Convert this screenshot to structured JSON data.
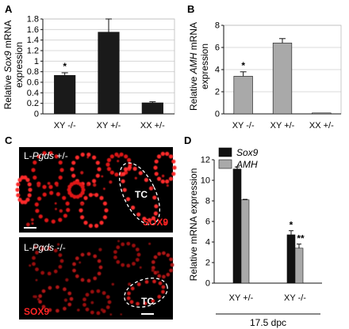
{
  "panels": {
    "A": "A",
    "B": "B",
    "C": "C",
    "D": "D"
  },
  "chart_data": [
    {
      "id": "A",
      "type": "bar",
      "categories": [
        "XY -/-",
        "XY +/-",
        "XX +/-"
      ],
      "values": [
        0.73,
        1.55,
        0.21
      ],
      "errors": [
        0.05,
        0.25,
        0.02
      ],
      "significance": [
        "*",
        "",
        ""
      ],
      "ylabel_parts": [
        "Relative ",
        "Sox9",
        " mRNA"
      ],
      "ylabel_line2": "expression",
      "yticks": [
        "0",
        "0.2",
        "0.4",
        "0.6",
        "0.8",
        "1",
        "1.2",
        "1.4",
        "1.6",
        "1.8"
      ],
      "ylim": [
        0,
        1.8
      ],
      "grid": true,
      "color": "#1a1a1a"
    },
    {
      "id": "B",
      "type": "bar",
      "categories": [
        "XY -/-",
        "XY +/-",
        "XX +/-"
      ],
      "values": [
        3.4,
        6.4,
        0.03
      ],
      "errors": [
        0.4,
        0.4,
        0.0
      ],
      "significance": [
        "*",
        "",
        ""
      ],
      "ylabel_parts": [
        "Relative ",
        "AMH",
        " mRNA"
      ],
      "ylabel_line2": "expression",
      "yticks": [
        "0",
        "2",
        "4",
        "6",
        "8"
      ],
      "ylim": [
        0,
        8
      ],
      "grid": true,
      "color": "#a9a9a9"
    },
    {
      "id": "D",
      "type": "bar",
      "categories": [
        "XY +/-",
        "XY -/-"
      ],
      "series": [
        {
          "name": "Sox9",
          "values": [
            11.1,
            4.7
          ],
          "errors": [
            0.2,
            0.4
          ],
          "significance": [
            "",
            "*"
          ],
          "color": "#111111"
        },
        {
          "name": "AMH",
          "values": [
            8.1,
            3.4
          ],
          "errors": [
            0.05,
            0.4
          ],
          "significance": [
            "",
            "**"
          ],
          "color": "#a9a9a9"
        }
      ],
      "ylabel": "Relative mRNA expression",
      "yticks": [
        "0",
        "2",
        "4",
        "6",
        "8",
        "10",
        "12"
      ],
      "ylim": [
        0,
        12
      ],
      "xlabel": "17.5 dpc",
      "grid": false,
      "legend": "top-left"
    }
  ],
  "micrographs": {
    "top": {
      "label_prefix": "L-",
      "label_gene": "Pgds",
      "label_suffix": " +/-",
      "tc": "TC",
      "stain": "SOX9"
    },
    "bottom": {
      "label_prefix": "L-",
      "label_gene": "Pgds",
      "label_suffix": " -/-",
      "tc": "TC",
      "stain": "SOX9"
    }
  }
}
